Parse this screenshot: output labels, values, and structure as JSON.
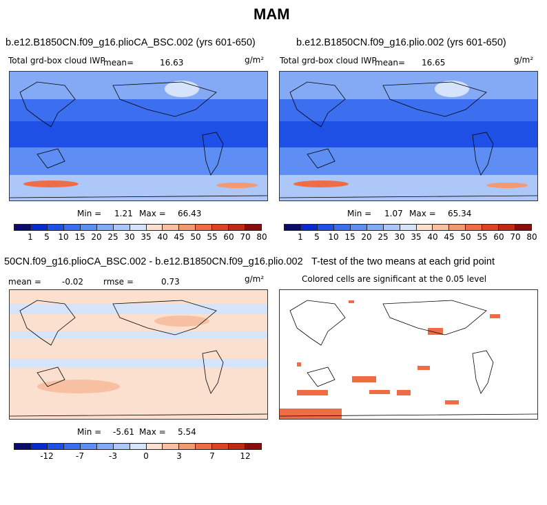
{
  "figure_title": "MAM",
  "panels": {
    "p1": {
      "title": "b.e12.B1850CN.f09_g16.plioCA_BSC.002 (yrs 601-650)",
      "subtitle": "Total grd-box cloud IWP",
      "mean_label": "mean=",
      "mean_value": "16.63",
      "units": "g/m²",
      "min_label": "Min =",
      "min_value": "1.21",
      "max_label": "Max =",
      "max_value": "66.43"
    },
    "p2": {
      "title": "b.e12.B1850CN.f09_g16.plio.002 (yrs 601-650)",
      "subtitle": "Total grd-box cloud IWP",
      "mean_label": "mean=",
      "mean_value": "16.65",
      "units": "g/m²",
      "min_label": "Min =",
      "min_value": "1.07",
      "max_label": "Max =",
      "max_value": "65.34"
    },
    "p3": {
      "title": "50CN.f09_g16.plioCA_BSC.002 - b.e12.B1850CN.f09_g16.plio.002",
      "mean_label": "mean =",
      "mean_value": "-0.02",
      "rmse_label": "rmse =",
      "rmse_value": "0.73",
      "units": "g/m²",
      "min_label": "Min =",
      "min_value": "-5.61",
      "max_label": "Max =",
      "max_value": "5.54"
    },
    "p4": {
      "title": "T-test of the two means at each grid point",
      "subtitle": "Colored cells are significant at the 0.05 level"
    }
  },
  "colorbars": {
    "abs": {
      "colors": [
        "#0b0b6e",
        "#0a2ad0",
        "#1f50e6",
        "#3c6ef0",
        "#5e8ef3",
        "#85aaf5",
        "#acc7f8",
        "#d6e4fb",
        "#fbe0cf",
        "#f8c0a2",
        "#f49a73",
        "#ee6d47",
        "#dc4424",
        "#bf2a15",
        "#8b0c0c"
      ],
      "labels": [
        "1",
        "5",
        "10",
        "15",
        "20",
        "25",
        "30",
        "35",
        "40",
        "45",
        "50",
        "55",
        "60",
        "70",
        "80"
      ]
    },
    "diff": {
      "colors": [
        "#0b0b6e",
        "#0a2ad0",
        "#1f50e6",
        "#3c6ef0",
        "#5e8ef3",
        "#85aaf5",
        "#acc7f8",
        "#d6e4fb",
        "#fbe0cf",
        "#f8c0a2",
        "#f49a73",
        "#ee6d47",
        "#dc4424",
        "#bf2a15",
        "#8b0c0c"
      ],
      "labels": [
        {
          "text": "-12",
          "pos": 2
        },
        {
          "text": "-7",
          "pos": 4
        },
        {
          "text": "-3",
          "pos": 6
        },
        {
          "text": "0",
          "pos": 8
        },
        {
          "text": "3",
          "pos": 10
        },
        {
          "text": "7",
          "pos": 12
        },
        {
          "text": "12",
          "pos": 14
        }
      ]
    }
  },
  "chart_data": [
    {
      "type": "heatmap",
      "title": "b.e12.B1850CN.f09_g16.plioCA_BSC.002 (yrs 601-650)",
      "variable": "Total grd-box cloud IWP",
      "units": "g/m²",
      "mean": 16.63,
      "min": 1.21,
      "max": 66.43,
      "levels": [
        1,
        5,
        10,
        15,
        20,
        25,
        30,
        35,
        40,
        45,
        50,
        55,
        60,
        70,
        80
      ]
    },
    {
      "type": "heatmap",
      "title": "b.e12.B1850CN.f09_g16.plio.002 (yrs 601-650)",
      "variable": "Total grd-box cloud IWP",
      "units": "g/m²",
      "mean": 16.65,
      "min": 1.07,
      "max": 65.34,
      "levels": [
        1,
        5,
        10,
        15,
        20,
        25,
        30,
        35,
        40,
        45,
        50,
        55,
        60,
        70,
        80
      ]
    },
    {
      "type": "heatmap",
      "title": "difference",
      "units": "g/m²",
      "mean": -0.02,
      "rmse": 0.73,
      "min": -5.61,
      "max": 5.54,
      "levels": [
        -12,
        -7,
        -3,
        0,
        3,
        7,
        12
      ]
    },
    {
      "type": "heatmap",
      "title": "T-test of the two means at each grid point",
      "note": "Colored cells are significant at the 0.05 level"
    }
  ]
}
